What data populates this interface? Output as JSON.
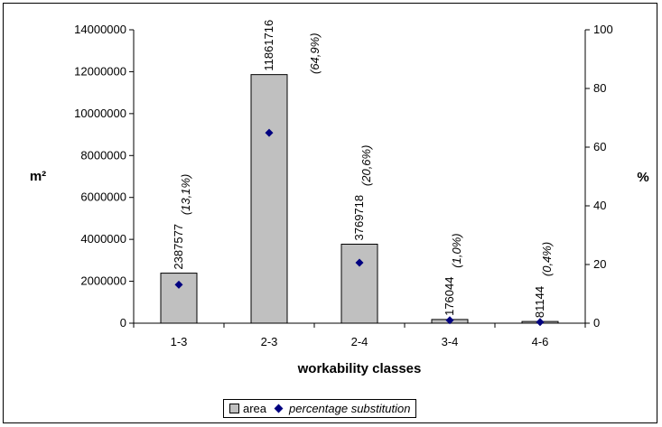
{
  "chart_data": {
    "type": "bar",
    "categories": [
      "1-3",
      "2-3",
      "2-4",
      "3-4",
      "4-6"
    ],
    "series": [
      {
        "name": "area",
        "type": "bar",
        "axis": "left",
        "values": [
          2387577,
          11861716,
          3769718,
          176044,
          81144
        ],
        "data_labels": [
          "2387577",
          "11861716",
          "3769718",
          "176044",
          "81144"
        ],
        "color": "#c0c0c0"
      },
      {
        "name": "percentage substitution",
        "type": "scatter",
        "axis": "right",
        "values": [
          13.1,
          64.9,
          20.6,
          1.0,
          0.4
        ],
        "data_labels": [
          "(13,1%)",
          "(64,9%)",
          "(20,6%)",
          "(1,0%)",
          "(0,4%)"
        ],
        "color": "#000080"
      }
    ],
    "xlabel": "workability classes",
    "ylabel": "m²",
    "ylabel_right": "%",
    "ylim": [
      0,
      14000000
    ],
    "ylim_right": [
      0,
      100
    ],
    "yticks": [
      "0",
      "2000000",
      "4000000",
      "6000000",
      "8000000",
      "10000000",
      "12000000",
      "14000000"
    ],
    "yticks_right": [
      "0",
      "20",
      "40",
      "60",
      "80",
      "100"
    ],
    "grid": false,
    "legend_position": "bottom"
  }
}
